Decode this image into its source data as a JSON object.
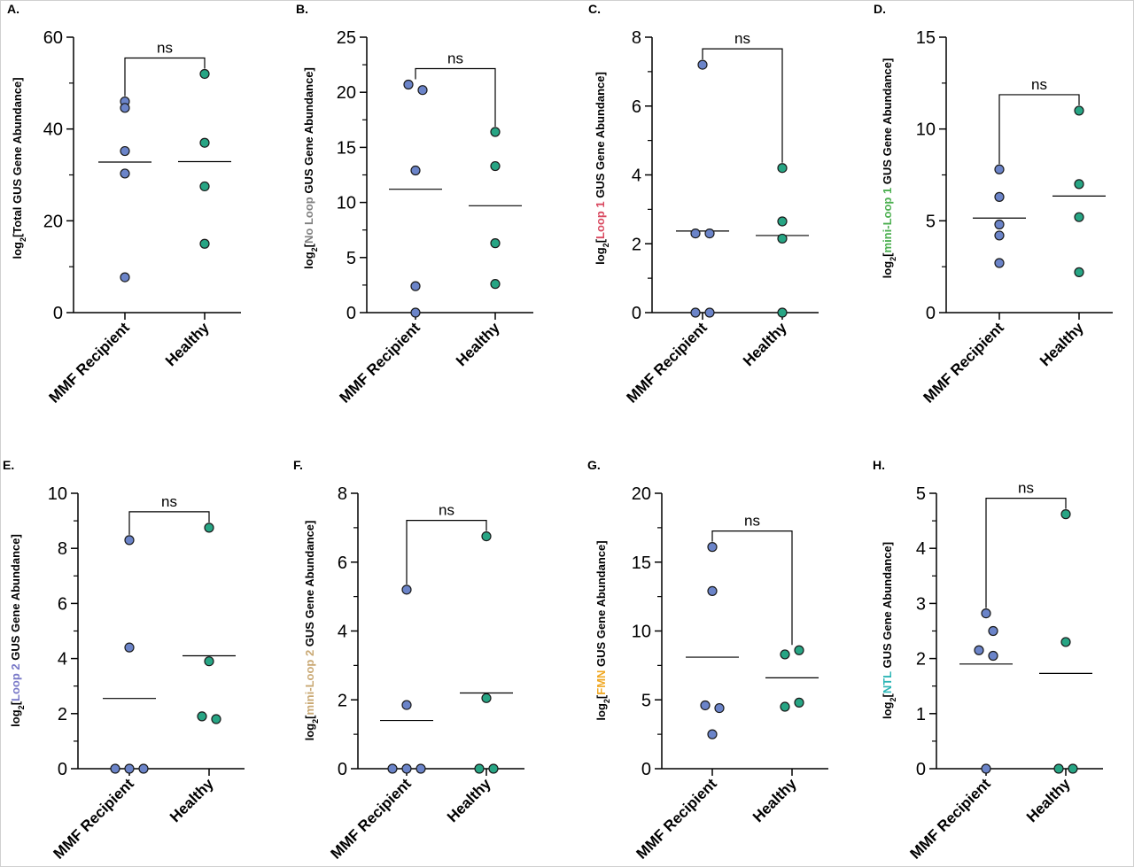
{
  "chart_data": [
    {
      "panel": "A.",
      "type": "scatter",
      "ylabel": {
        "before": "log",
        "sub": "2",
        "open": "[",
        "highlight": "Total",
        "highlight_color": "#000000",
        "after": " GUS Gene Abundance]"
      },
      "ylim": [
        0,
        60
      ],
      "yticks": [
        0,
        20,
        40,
        60
      ],
      "categories": [
        "MMF Recipient",
        "Healthy"
      ],
      "series": [
        {
          "color": "#6b84c9",
          "values": [
            46,
            44.6,
            35.2,
            30.3,
            7.7
          ],
          "mean": 32.8
        },
        {
          "color": "#27a584",
          "values": [
            52,
            37,
            27.5,
            15
          ],
          "mean": 32.9
        }
      ],
      "annotation": "ns"
    },
    {
      "panel": "B.",
      "type": "scatter",
      "ylabel": {
        "before": "log",
        "sub": "2",
        "open": "[",
        "highlight": "No Loop",
        "highlight_color": "#7f7f7f",
        "after": " GUS Gene Abundance]"
      },
      "ylim": [
        0,
        25
      ],
      "yticks": [
        0,
        5,
        10,
        15,
        20,
        25
      ],
      "categories": [
        "MMF Recipient",
        "Healthy"
      ],
      "series": [
        {
          "color": "#6b84c9",
          "values": [
            20.7,
            20.2,
            12.9,
            2.4,
            0
          ],
          "mean": 11.2
        },
        {
          "color": "#27a584",
          "values": [
            16.4,
            13.3,
            6.3,
            2.6
          ],
          "mean": 9.7
        }
      ],
      "annotation": "ns"
    },
    {
      "panel": "C.",
      "type": "scatter",
      "ylabel": {
        "before": "log",
        "sub": "2",
        "open": "[",
        "highlight": "Loop 1",
        "highlight_color": "#d9485f",
        "after": " GUS Gene Abundance]"
      },
      "ylim": [
        0,
        8
      ],
      "yticks": [
        0,
        2,
        4,
        6,
        8
      ],
      "categories": [
        "MMF Recipient",
        "Healthy"
      ],
      "series": [
        {
          "color": "#6b84c9",
          "values": [
            7.2,
            2.3,
            2.3,
            0,
            0
          ],
          "mean": 2.37
        },
        {
          "color": "#27a584",
          "values": [
            4.2,
            2.65,
            2.15,
            0
          ],
          "mean": 2.24
        }
      ],
      "annotation": "ns"
    },
    {
      "panel": "D.",
      "type": "scatter",
      "ylabel": {
        "before": "log",
        "sub": "2",
        "open": "[",
        "highlight": "mini-Loop 1",
        "highlight_color": "#4caf50",
        "after": " GUS Gene Abundance]"
      },
      "ylim": [
        0,
        15
      ],
      "yticks": [
        0,
        5,
        10,
        15
      ],
      "categories": [
        "MMF Recipient",
        "Healthy"
      ],
      "series": [
        {
          "color": "#6b84c9",
          "values": [
            7.8,
            6.3,
            4.8,
            4.2,
            2.7
          ],
          "mean": 5.15
        },
        {
          "color": "#27a584",
          "values": [
            11,
            7,
            5.2,
            2.2
          ],
          "mean": 6.35
        }
      ],
      "annotation": "ns"
    },
    {
      "panel": "E.",
      "type": "scatter",
      "ylabel": {
        "before": "log",
        "sub": "2",
        "open": "[",
        "highlight": "Loop 2",
        "highlight_color": "#7777c7",
        "after": " GUS Gene Abundance]"
      },
      "ylim": [
        0,
        10
      ],
      "yticks": [
        0,
        2,
        4,
        6,
        8,
        10
      ],
      "categories": [
        "MMF Recipient",
        "Healthy"
      ],
      "series": [
        {
          "color": "#6b84c9",
          "values": [
            8.3,
            4.4,
            0,
            0,
            0
          ],
          "mean": 2.55
        },
        {
          "color": "#27a584",
          "values": [
            8.75,
            3.9,
            1.9,
            1.8
          ],
          "mean": 4.1
        }
      ],
      "annotation": "ns"
    },
    {
      "panel": "F.",
      "type": "scatter",
      "ylabel": {
        "before": "log",
        "sub": "2",
        "open": "[",
        "highlight": "mini-Loop 2",
        "highlight_color": "#c9a873",
        "after": " GUS Gene Abundance]"
      },
      "ylim": [
        0,
        8
      ],
      "yticks": [
        0,
        2,
        4,
        6,
        8
      ],
      "categories": [
        "MMF Recipient",
        "Healthy"
      ],
      "series": [
        {
          "color": "#6b84c9",
          "values": [
            5.2,
            1.85,
            0,
            0,
            0
          ],
          "mean": 1.4
        },
        {
          "color": "#27a584",
          "values": [
            6.75,
            2.05,
            0,
            0
          ],
          "mean": 2.2
        }
      ],
      "annotation": "ns"
    },
    {
      "panel": "G.",
      "type": "scatter",
      "ylabel": {
        "before": "log",
        "sub": "2",
        "open": "[",
        "highlight": "FMN",
        "highlight_color": "#f0a824",
        "after": " GUS Gene Abundance]"
      },
      "ylim": [
        0,
        20
      ],
      "yticks": [
        0,
        5,
        10,
        15,
        20
      ],
      "categories": [
        "MMF Recipient",
        "Healthy"
      ],
      "series": [
        {
          "color": "#6b84c9",
          "values": [
            16.1,
            12.9,
            4.6,
            4.4,
            2.5
          ],
          "mean": 8.1
        },
        {
          "color": "#27a584",
          "values": [
            8.6,
            8.3,
            4.8,
            4.5
          ],
          "mean": 6.6
        }
      ],
      "annotation": "ns"
    },
    {
      "panel": "H.",
      "type": "scatter",
      "ylabel": {
        "before": "log",
        "sub": "2",
        "open": "[",
        "highlight": "NTL",
        "highlight_color": "#2cb5b5",
        "after": " GUS Gene Abundance]"
      },
      "ylim": [
        0,
        5
      ],
      "yticks": [
        0,
        1,
        2,
        3,
        4,
        5
      ],
      "categories": [
        "MMF Recipient",
        "Healthy"
      ],
      "series": [
        {
          "color": "#6b84c9",
          "values": [
            2.82,
            2.5,
            2.15,
            2.05,
            0
          ],
          "mean": 1.9
        },
        {
          "color": "#27a584",
          "values": [
            4.62,
            2.3,
            0,
            0
          ],
          "mean": 1.73
        }
      ],
      "annotation": "ns"
    }
  ]
}
